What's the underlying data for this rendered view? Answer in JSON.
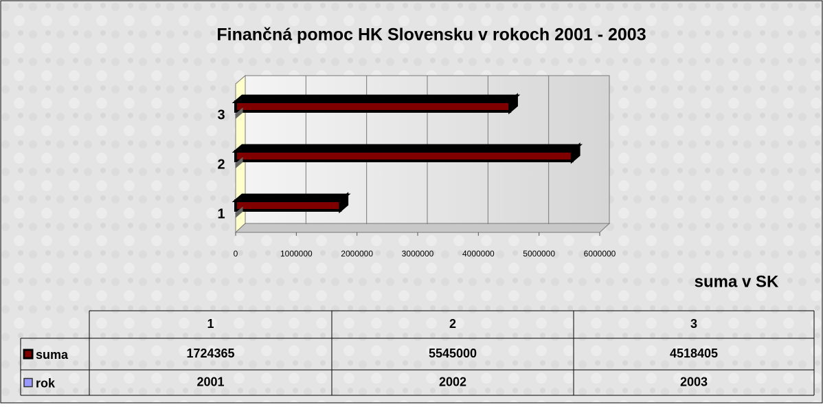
{
  "chart_data": {
    "type": "bar3d_horizontal",
    "title": "Finančná pomoc HK Slovensku v rokoch 2001 - 2003",
    "x_label": "suma v SK",
    "categories": [
      "1",
      "2",
      "3"
    ],
    "series": [
      {
        "name": "suma",
        "color": "#800000",
        "values": [
          1724365,
          5545000,
          4518405
        ]
      },
      {
        "name": "rok",
        "color": "#9999ff",
        "values": [
          2001,
          2002,
          2003
        ]
      }
    ],
    "xlim": [
      0,
      6000000
    ],
    "xticks": [
      0,
      1000000,
      2000000,
      3000000,
      4000000,
      5000000,
      6000000
    ],
    "grid": true,
    "data_table": true
  }
}
